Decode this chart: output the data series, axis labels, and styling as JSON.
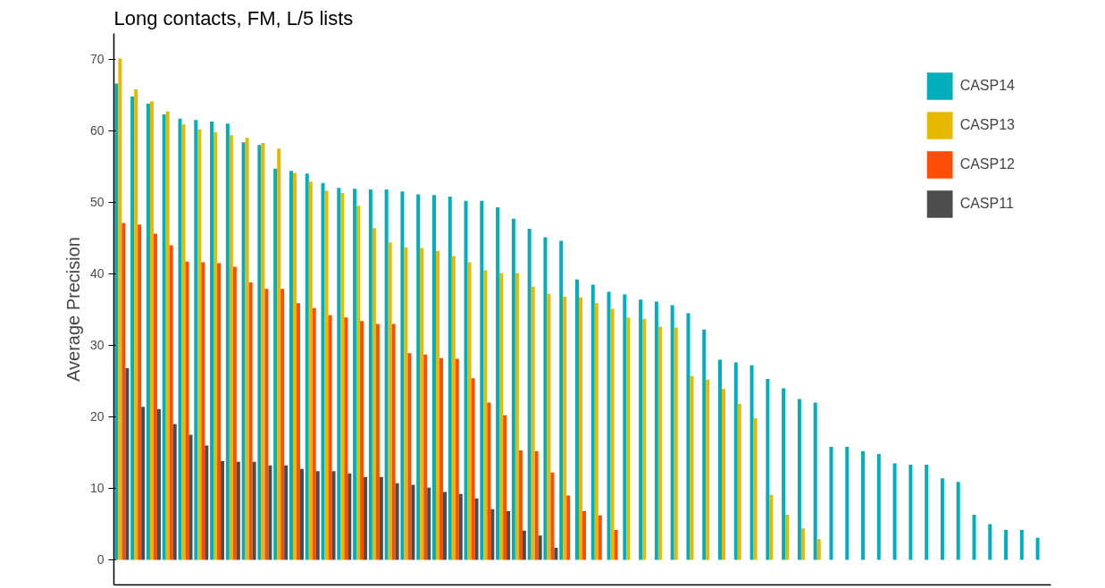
{
  "chart_data": {
    "type": "bar",
    "title": "Long contacts, FM, L/5 lists",
    "ylabel": "Average Precision",
    "categories": [
      null,
      null,
      null,
      null,
      null,
      null,
      null,
      null,
      null,
      null,
      null,
      null,
      null,
      null,
      null,
      null,
      null,
      null,
      null,
      null,
      null,
      null,
      null,
      null,
      null,
      null,
      null,
      null,
      null,
      null,
      null,
      null,
      null,
      null,
      null,
      null,
      null,
      null,
      null,
      null,
      null,
      null,
      null,
      null,
      null,
      null,
      null,
      null,
      null,
      null,
      null,
      null,
      null,
      null,
      null,
      null,
      null,
      null,
      null
    ],
    "series": [
      {
        "name": "CASP14",
        "color": "#00afbb",
        "values": [
          66.6,
          64.8,
          63.8,
          62.3,
          61.7,
          61.5,
          61.3,
          61.0,
          58.4,
          58.0,
          54.7,
          54.4,
          54.0,
          52.7,
          52.0,
          51.9,
          51.8,
          51.8,
          51.5,
          51.1,
          51.0,
          50.8,
          50.2,
          50.2,
          49.3,
          47.7,
          46.3,
          45.1,
          44.6,
          39.2,
          38.5,
          37.5,
          37.1,
          36.4,
          36.1,
          35.6,
          34.5,
          32.2,
          28.0,
          27.6,
          27.2,
          25.3,
          24.0,
          22.5,
          22.0,
          15.8,
          15.8,
          15.2,
          14.8,
          13.5,
          13.3,
          13.3,
          11.4,
          10.9,
          6.3,
          5.0,
          4.2,
          4.2,
          3.1
        ]
      },
      {
        "name": "CASP13",
        "color": "#e7b800",
        "values": [
          70.1,
          65.8,
          64.1,
          62.7,
          60.9,
          60.2,
          59.8,
          59.4,
          59.0,
          58.3,
          57.5,
          54.1,
          52.9,
          51.6,
          51.3,
          49.5,
          46.4,
          44.4,
          43.7,
          43.6,
          43.2,
          42.5,
          41.6,
          40.5,
          40.1,
          40.1,
          38.2,
          37.2,
          36.8,
          36.7,
          35.9,
          35.1,
          33.9,
          33.7,
          32.6,
          32.5,
          25.7,
          25.2,
          23.9,
          21.8,
          19.8,
          9.1,
          6.3,
          4.4,
          2.9,
          null,
          null,
          null,
          null,
          null,
          null,
          null,
          null,
          null,
          null,
          null,
          null,
          null,
          null
        ]
      },
      {
        "name": "CASP12",
        "color": "#fc4e07",
        "values": [
          47.1,
          46.9,
          45.6,
          44.0,
          41.7,
          41.6,
          41.5,
          41.0,
          38.8,
          37.9,
          37.9,
          35.9,
          35.2,
          34.2,
          33.9,
          33.4,
          33.0,
          33.0,
          28.9,
          28.7,
          28.2,
          28.1,
          25.4,
          22.0,
          20.2,
          15.3,
          15.2,
          12.2,
          9.0,
          6.8,
          6.2,
          4.2,
          null,
          null,
          null,
          null,
          null,
          null,
          null,
          null,
          null,
          null,
          null,
          null,
          null,
          null,
          null,
          null,
          null,
          null,
          null,
          null,
          null,
          null,
          null,
          null,
          null,
          null,
          null
        ]
      },
      {
        "name": "CASP11",
        "color": "#4d4d4d",
        "values": [
          26.8,
          21.4,
          21.1,
          19.0,
          17.5,
          16.0,
          13.8,
          13.7,
          13.7,
          13.2,
          13.2,
          12.7,
          12.4,
          12.4,
          12.1,
          11.6,
          11.6,
          10.7,
          10.5,
          10.1,
          9.5,
          9.2,
          8.6,
          7.1,
          6.8,
          4.1,
          3.4,
          1.7,
          null,
          null,
          null,
          null,
          null,
          null,
          null,
          null,
          null,
          null,
          null,
          null,
          null,
          null,
          null,
          null,
          null,
          null,
          null,
          null,
          null,
          null,
          null,
          null,
          null,
          null,
          null,
          null,
          null,
          null,
          null
        ]
      }
    ],
    "ylim": [
      -3.5,
      73.6
    ],
    "yticks": [
      0,
      10,
      20,
      30,
      40,
      50,
      60,
      70
    ],
    "legend": "top right",
    "tick_labels": "y"
  }
}
